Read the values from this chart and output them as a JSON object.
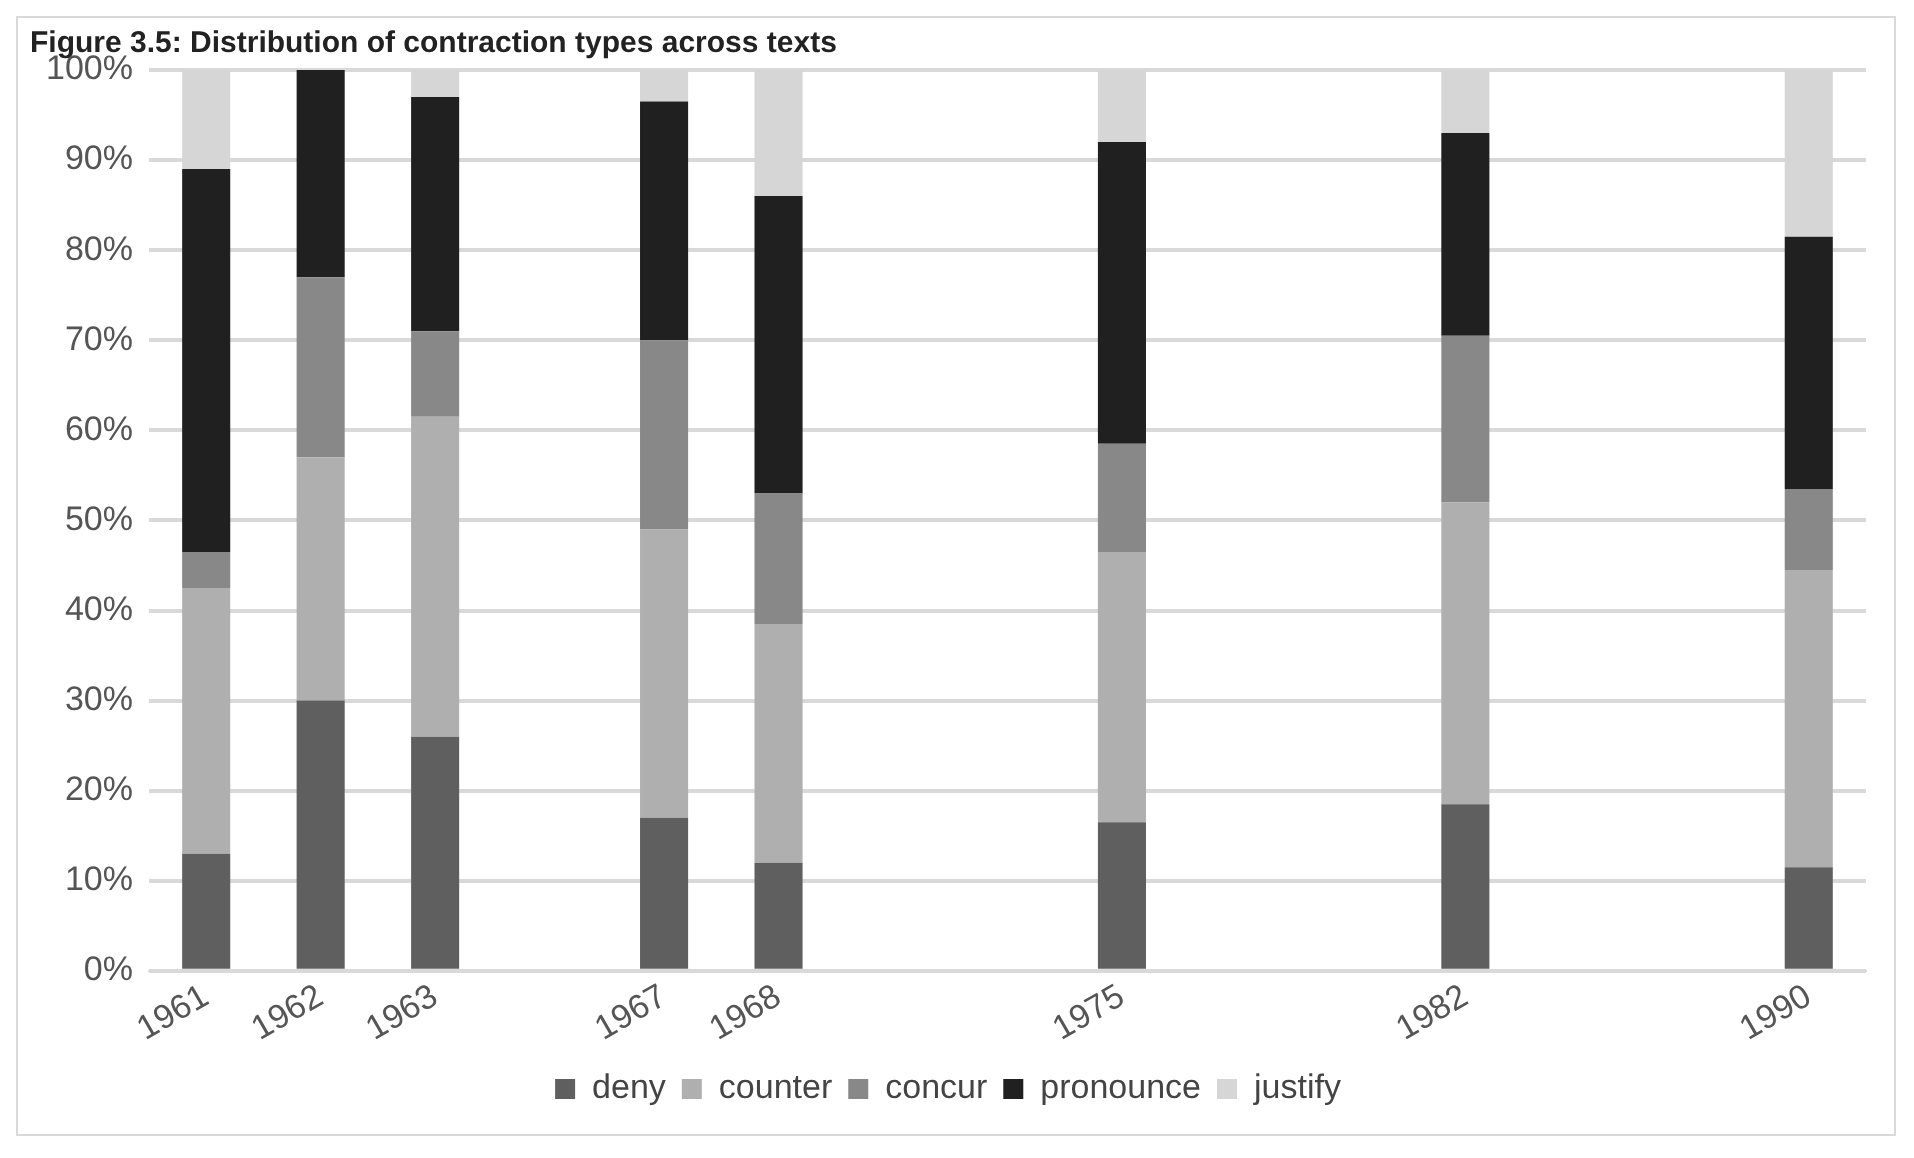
{
  "chart_data": {
    "type": "bar",
    "stacked": true,
    "title": "Figure 3.5: Distribution of contraction types across texts",
    "categories": [
      "1961",
      "1962",
      "1963",
      null,
      "1967",
      "1968",
      null,
      null,
      "1975",
      null,
      null,
      "1982",
      null,
      null,
      "1990"
    ],
    "series": [
      {
        "name": "deny",
        "color": "#5f5f5f",
        "values": [
          13,
          30,
          26,
          null,
          17,
          12,
          null,
          null,
          16.5,
          null,
          null,
          18.5,
          null,
          null,
          11.5
        ]
      },
      {
        "name": "counter",
        "color": "#afafaf",
        "values": [
          29.5,
          27,
          35.5,
          null,
          32,
          26.5,
          null,
          null,
          30,
          null,
          null,
          33.5,
          null,
          null,
          33
        ]
      },
      {
        "name": "concur",
        "color": "#888888",
        "values": [
          4,
          20,
          9.5,
          null,
          21,
          14.5,
          null,
          null,
          12,
          null,
          null,
          18.5,
          null,
          null,
          9
        ]
      },
      {
        "name": "pronounce",
        "color": "#202020",
        "values": [
          42.5,
          23,
          26,
          null,
          26.5,
          33,
          null,
          null,
          33.5,
          null,
          null,
          22.5,
          null,
          null,
          28
        ]
      },
      {
        "name": "justify",
        "color": "#d6d6d6",
        "values": [
          11,
          0,
          3,
          null,
          3.5,
          14,
          null,
          null,
          8,
          null,
          null,
          7,
          null,
          null,
          18.5
        ]
      }
    ],
    "ylim": [
      0,
      100
    ],
    "yticks": [
      {
        "value": 0,
        "label": "0%"
      },
      {
        "value": 10,
        "label": "10%"
      },
      {
        "value": 20,
        "label": "20%"
      },
      {
        "value": 30,
        "label": "30%"
      },
      {
        "value": 40,
        "label": "40%"
      },
      {
        "value": 50,
        "label": "50%"
      },
      {
        "value": 60,
        "label": "60%"
      },
      {
        "value": 70,
        "label": "70%"
      },
      {
        "value": 80,
        "label": "80%"
      },
      {
        "value": 90,
        "label": "90%"
      },
      {
        "value": 100,
        "label": "100%"
      }
    ],
    "grid": "y",
    "legend": "bottom"
  }
}
